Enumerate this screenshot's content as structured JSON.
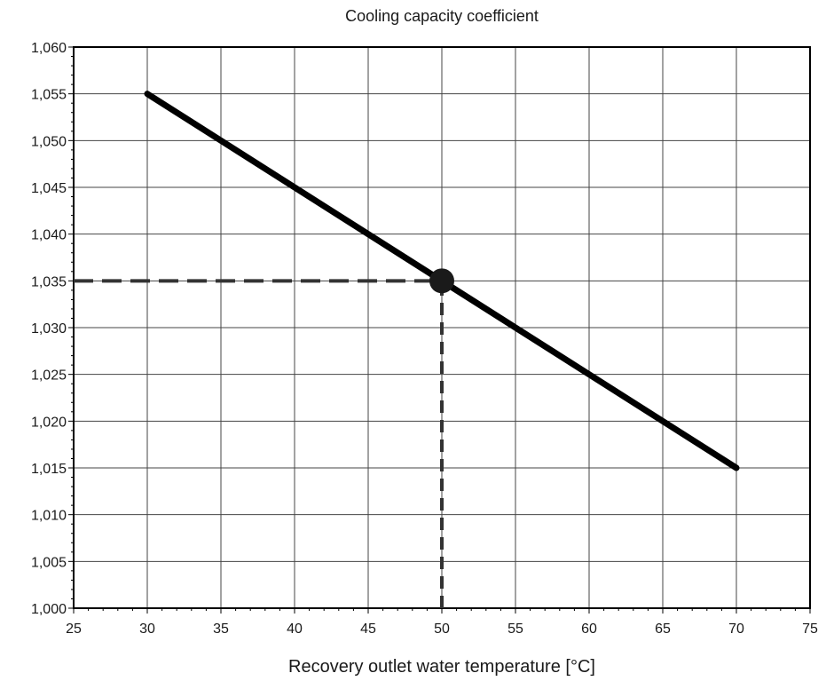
{
  "chart_data": {
    "type": "line",
    "title": "Cooling capacity coefficient",
    "xlabel": "Recovery outlet water temperature [°C]",
    "ylabel": "",
    "xlim": [
      25,
      75
    ],
    "ylim": [
      1.0,
      1.06
    ],
    "x_ticks": [
      25,
      30,
      35,
      40,
      45,
      50,
      55,
      60,
      65,
      70,
      75
    ],
    "y_ticks": [
      1.0,
      1.005,
      1.01,
      1.015,
      1.02,
      1.025,
      1.03,
      1.035,
      1.04,
      1.045,
      1.05,
      1.055,
      1.06
    ],
    "x_tick_labels": [
      "25",
      "30",
      "35",
      "40",
      "45",
      "50",
      "55",
      "60",
      "65",
      "70",
      "75"
    ],
    "y_tick_labels": [
      "1,000",
      "1,005",
      "1,010",
      "1,015",
      "1,020",
      "1,025",
      "1,030",
      "1,035",
      "1,040",
      "1,045",
      "1,050",
      "1,055",
      "1,060"
    ],
    "grid": true,
    "series": [
      {
        "x": [
          30,
          70
        ],
        "y": [
          1.055,
          1.015
        ],
        "color": "#000000"
      }
    ],
    "marker": {
      "x": 50,
      "y": 1.035,
      "color": "#1a1a1a"
    },
    "reference_lines": {
      "horizontal": {
        "y": 1.035,
        "x_from": 25,
        "x_to": 50,
        "style": "dashed"
      },
      "vertical": {
        "x": 50,
        "y_from": 1.0,
        "y_to": 1.035,
        "style": "dashed"
      }
    }
  }
}
